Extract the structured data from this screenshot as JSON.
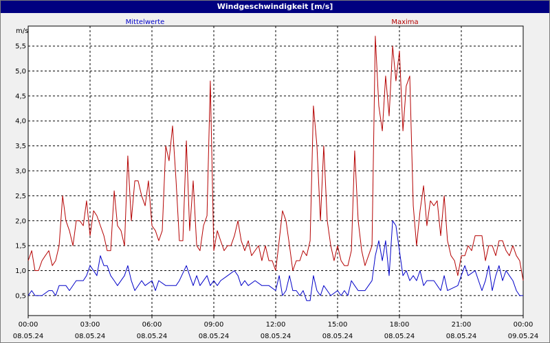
{
  "window": {
    "title": "Windgeschwindigkeit [m/s]"
  },
  "chart_data": {
    "type": "line",
    "title": "Windgeschwindigkeit [m/s]",
    "ylabel": "m/s",
    "ylim": [
      0.1,
      5.9
    ],
    "yticks": [
      0.5,
      1.0,
      1.5,
      2.0,
      2.5,
      3.0,
      3.5,
      4.0,
      4.5,
      5.0,
      5.5
    ],
    "ytick_labels": [
      "0,5",
      "1,0",
      "1,5",
      "2,0",
      "2,5",
      "3,0",
      "3,5",
      "4,0",
      "4,5",
      "5,0",
      "5,5"
    ],
    "xlim_hours": [
      0,
      24
    ],
    "xticks": [
      {
        "time": "00:00",
        "date": "08.05.24",
        "h": 0
      },
      {
        "time": "03:00",
        "date": "08.05.24",
        "h": 3
      },
      {
        "time": "06:00",
        "date": "08.05.24",
        "h": 6
      },
      {
        "time": "09:00",
        "date": "08.05.24",
        "h": 9
      },
      {
        "time": "12:00",
        "date": "08.05.24",
        "h": 12
      },
      {
        "time": "15:00",
        "date": "08.05.24",
        "h": 15
      },
      {
        "time": "18:00",
        "date": "08.05.24",
        "h": 18
      },
      {
        "time": "21:00",
        "date": "08.05.24",
        "h": 21
      },
      {
        "time": "00:00",
        "date": "09.05.24",
        "h": 24
      }
    ],
    "grid": true,
    "legend_placement": "top",
    "series": [
      {
        "name": "Mittelwerte",
        "color": "#0000c8",
        "points": [
          [
            0.0,
            0.5
          ],
          [
            0.17,
            0.6
          ],
          [
            0.33,
            0.5
          ],
          [
            0.67,
            0.5
          ],
          [
            1.0,
            0.6
          ],
          [
            1.17,
            0.6
          ],
          [
            1.33,
            0.5
          ],
          [
            1.5,
            0.7
          ],
          [
            1.83,
            0.7
          ],
          [
            2.0,
            0.6
          ],
          [
            2.33,
            0.8
          ],
          [
            2.67,
            0.8
          ],
          [
            2.83,
            0.9
          ],
          [
            3.0,
            1.1
          ],
          [
            3.17,
            1.0
          ],
          [
            3.33,
            0.9
          ],
          [
            3.5,
            1.3
          ],
          [
            3.67,
            1.1
          ],
          [
            3.83,
            1.1
          ],
          [
            4.0,
            0.9
          ],
          [
            4.17,
            0.8
          ],
          [
            4.33,
            0.7
          ],
          [
            4.67,
            0.9
          ],
          [
            4.83,
            1.1
          ],
          [
            5.0,
            0.8
          ],
          [
            5.17,
            0.6
          ],
          [
            5.5,
            0.8
          ],
          [
            5.67,
            0.7
          ],
          [
            6.0,
            0.8
          ],
          [
            6.17,
            0.6
          ],
          [
            6.33,
            0.8
          ],
          [
            6.67,
            0.7
          ],
          [
            7.17,
            0.7
          ],
          [
            7.33,
            0.8
          ],
          [
            7.67,
            1.1
          ],
          [
            7.83,
            0.9
          ],
          [
            8.0,
            0.7
          ],
          [
            8.17,
            0.9
          ],
          [
            8.33,
            0.7
          ],
          [
            8.67,
            0.9
          ],
          [
            8.83,
            0.7
          ],
          [
            9.0,
            0.8
          ],
          [
            9.17,
            0.7
          ],
          [
            9.33,
            0.8
          ],
          [
            9.67,
            0.9
          ],
          [
            10.0,
            1.0
          ],
          [
            10.17,
            0.9
          ],
          [
            10.33,
            0.7
          ],
          [
            10.5,
            0.8
          ],
          [
            10.67,
            0.7
          ],
          [
            11.0,
            0.8
          ],
          [
            11.33,
            0.7
          ],
          [
            11.67,
            0.7
          ],
          [
            12.0,
            0.6
          ],
          [
            12.17,
            0.9
          ],
          [
            12.33,
            0.5
          ],
          [
            12.5,
            0.6
          ],
          [
            12.67,
            0.9
          ],
          [
            12.83,
            0.6
          ],
          [
            13.0,
            0.6
          ],
          [
            13.17,
            0.5
          ],
          [
            13.33,
            0.6
          ],
          [
            13.5,
            0.4
          ],
          [
            13.67,
            0.4
          ],
          [
            13.83,
            0.9
          ],
          [
            14.0,
            0.6
          ],
          [
            14.17,
            0.5
          ],
          [
            14.33,
            0.7
          ],
          [
            14.5,
            0.6
          ],
          [
            14.67,
            0.5
          ],
          [
            15.0,
            0.6
          ],
          [
            15.17,
            0.5
          ],
          [
            15.33,
            0.6
          ],
          [
            15.5,
            0.5
          ],
          [
            15.67,
            0.8
          ],
          [
            15.83,
            0.7
          ],
          [
            16.0,
            0.6
          ],
          [
            16.33,
            0.6
          ],
          [
            16.67,
            0.8
          ],
          [
            16.83,
            1.3
          ],
          [
            17.0,
            1.6
          ],
          [
            17.17,
            1.2
          ],
          [
            17.33,
            1.6
          ],
          [
            17.5,
            0.9
          ],
          [
            17.67,
            2.0
          ],
          [
            17.83,
            1.9
          ],
          [
            18.0,
            1.4
          ],
          [
            18.17,
            0.9
          ],
          [
            18.33,
            1.0
          ],
          [
            18.5,
            0.8
          ],
          [
            18.67,
            0.9
          ],
          [
            18.83,
            0.8
          ],
          [
            19.0,
            1.0
          ],
          [
            19.17,
            0.7
          ],
          [
            19.33,
            0.8
          ],
          [
            19.5,
            0.8
          ],
          [
            19.67,
            0.8
          ],
          [
            20.0,
            0.6
          ],
          [
            20.17,
            0.9
          ],
          [
            20.33,
            0.6
          ],
          [
            20.83,
            0.7
          ],
          [
            21.0,
            0.9
          ],
          [
            21.17,
            1.1
          ],
          [
            21.33,
            0.9
          ],
          [
            21.67,
            1.0
          ],
          [
            22.0,
            0.6
          ],
          [
            22.17,
            0.8
          ],
          [
            22.33,
            1.1
          ],
          [
            22.5,
            0.6
          ],
          [
            22.67,
            0.9
          ],
          [
            22.83,
            1.1
          ],
          [
            23.0,
            0.8
          ],
          [
            23.17,
            1.0
          ],
          [
            23.33,
            0.9
          ],
          [
            23.5,
            0.8
          ],
          [
            23.67,
            0.6
          ],
          [
            23.83,
            0.5
          ],
          [
            24.0,
            0.5
          ]
        ]
      },
      {
        "name": "Maxima",
        "color": "#b40000",
        "points": [
          [
            0.0,
            1.2
          ],
          [
            0.17,
            1.4
          ],
          [
            0.33,
            1.0
          ],
          [
            0.5,
            1.0
          ],
          [
            0.67,
            1.2
          ],
          [
            0.83,
            1.3
          ],
          [
            1.0,
            1.4
          ],
          [
            1.17,
            1.1
          ],
          [
            1.33,
            1.2
          ],
          [
            1.5,
            1.5
          ],
          [
            1.67,
            2.5
          ],
          [
            1.83,
            2.0
          ],
          [
            2.0,
            1.8
          ],
          [
            2.17,
            1.5
          ],
          [
            2.33,
            2.0
          ],
          [
            2.5,
            2.0
          ],
          [
            2.67,
            1.9
          ],
          [
            2.83,
            2.4
          ],
          [
            3.0,
            1.7
          ],
          [
            3.17,
            2.2
          ],
          [
            3.33,
            2.1
          ],
          [
            3.5,
            1.9
          ],
          [
            3.67,
            1.7
          ],
          [
            3.83,
            1.4
          ],
          [
            4.0,
            1.4
          ],
          [
            4.17,
            2.6
          ],
          [
            4.33,
            1.9
          ],
          [
            4.5,
            1.8
          ],
          [
            4.67,
            1.5
          ],
          [
            4.83,
            3.3
          ],
          [
            5.0,
            2.0
          ],
          [
            5.17,
            2.8
          ],
          [
            5.33,
            2.8
          ],
          [
            5.5,
            2.5
          ],
          [
            5.67,
            2.3
          ],
          [
            5.83,
            2.8
          ],
          [
            6.0,
            1.9
          ],
          [
            6.17,
            1.8
          ],
          [
            6.33,
            1.6
          ],
          [
            6.5,
            1.8
          ],
          [
            6.67,
            3.5
          ],
          [
            6.83,
            3.2
          ],
          [
            7.0,
            3.9
          ],
          [
            7.17,
            2.8
          ],
          [
            7.33,
            1.6
          ],
          [
            7.5,
            1.6
          ],
          [
            7.67,
            3.6
          ],
          [
            7.83,
            1.8
          ],
          [
            8.0,
            2.8
          ],
          [
            8.17,
            1.5
          ],
          [
            8.33,
            1.4
          ],
          [
            8.5,
            1.9
          ],
          [
            8.67,
            2.1
          ],
          [
            8.83,
            4.8
          ],
          [
            9.0,
            1.4
          ],
          [
            9.17,
            1.8
          ],
          [
            9.33,
            1.6
          ],
          [
            9.5,
            1.4
          ],
          [
            9.67,
            1.5
          ],
          [
            9.83,
            1.5
          ],
          [
            10.0,
            1.7
          ],
          [
            10.17,
            2.0
          ],
          [
            10.33,
            1.6
          ],
          [
            10.5,
            1.4
          ],
          [
            10.67,
            1.6
          ],
          [
            10.83,
            1.3
          ],
          [
            11.0,
            1.4
          ],
          [
            11.17,
            1.5
          ],
          [
            11.33,
            1.2
          ],
          [
            11.5,
            1.5
          ],
          [
            11.67,
            1.2
          ],
          [
            11.83,
            1.2
          ],
          [
            12.0,
            1.0
          ],
          [
            12.17,
            1.6
          ],
          [
            12.33,
            2.2
          ],
          [
            12.5,
            2.0
          ],
          [
            12.67,
            1.5
          ],
          [
            12.83,
            1.0
          ],
          [
            13.0,
            1.2
          ],
          [
            13.17,
            1.2
          ],
          [
            13.33,
            1.4
          ],
          [
            13.5,
            1.3
          ],
          [
            13.67,
            1.6
          ],
          [
            13.83,
            4.3
          ],
          [
            14.0,
            3.5
          ],
          [
            14.17,
            2.0
          ],
          [
            14.33,
            3.5
          ],
          [
            14.5,
            2.0
          ],
          [
            14.67,
            1.5
          ],
          [
            14.83,
            1.2
          ],
          [
            15.0,
            1.5
          ],
          [
            15.17,
            1.2
          ],
          [
            15.33,
            1.1
          ],
          [
            15.5,
            1.1
          ],
          [
            15.67,
            1.4
          ],
          [
            15.83,
            3.4
          ],
          [
            16.0,
            2.0
          ],
          [
            16.17,
            1.4
          ],
          [
            16.33,
            1.1
          ],
          [
            16.5,
            1.3
          ],
          [
            16.67,
            1.5
          ],
          [
            16.83,
            5.7
          ],
          [
            17.0,
            4.3
          ],
          [
            17.17,
            3.8
          ],
          [
            17.33,
            4.9
          ],
          [
            17.5,
            4.1
          ],
          [
            17.67,
            5.5
          ],
          [
            17.83,
            4.8
          ],
          [
            18.0,
            5.4
          ],
          [
            18.17,
            3.8
          ],
          [
            18.33,
            4.7
          ],
          [
            18.5,
            4.9
          ],
          [
            18.67,
            2.3
          ],
          [
            18.83,
            1.5
          ],
          [
            19.0,
            2.2
          ],
          [
            19.17,
            2.7
          ],
          [
            19.33,
            1.9
          ],
          [
            19.5,
            2.4
          ],
          [
            19.67,
            2.3
          ],
          [
            19.83,
            2.4
          ],
          [
            20.0,
            1.7
          ],
          [
            20.17,
            2.5
          ],
          [
            20.33,
            1.6
          ],
          [
            20.5,
            1.3
          ],
          [
            20.67,
            1.2
          ],
          [
            20.83,
            0.9
          ],
          [
            21.0,
            1.3
          ],
          [
            21.17,
            1.3
          ],
          [
            21.33,
            1.5
          ],
          [
            21.5,
            1.4
          ],
          [
            21.67,
            1.7
          ],
          [
            22.0,
            1.7
          ],
          [
            22.17,
            1.2
          ],
          [
            22.33,
            1.5
          ],
          [
            22.5,
            1.5
          ],
          [
            22.67,
            1.3
          ],
          [
            22.83,
            1.6
          ],
          [
            23.0,
            1.6
          ],
          [
            23.17,
            1.4
          ],
          [
            23.33,
            1.3
          ],
          [
            23.5,
            1.5
          ],
          [
            23.67,
            1.3
          ],
          [
            23.83,
            1.2
          ],
          [
            24.0,
            0.8
          ]
        ]
      }
    ]
  }
}
